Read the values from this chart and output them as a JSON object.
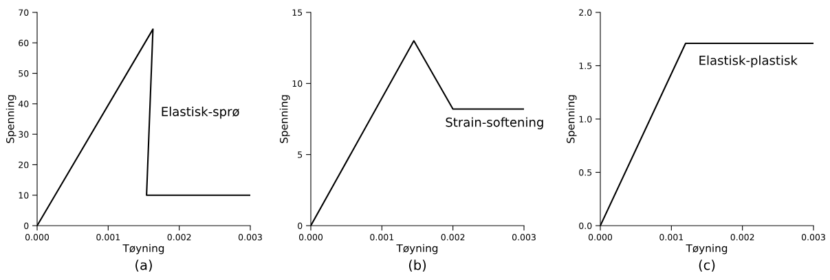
{
  "chart_data": [
    {
      "type": "line",
      "subtitle": "(a)",
      "xlabel": "Tøyning",
      "ylabel": "Spenning",
      "series": [
        {
          "color": "#000000",
          "x": [
            0,
            0.00163,
            0.00154,
            0.003
          ],
          "values": [
            0,
            64.5,
            10,
            10
          ]
        }
      ],
      "xlim": [
        0,
        0.003
      ],
      "xticks": [
        {
          "value": 0,
          "label": "0.000"
        },
        {
          "value": 0.001,
          "label": "0.001"
        },
        {
          "value": 0.002,
          "label": "0.002"
        },
        {
          "value": 0.003,
          "label": "0.003"
        }
      ],
      "ylim": [
        0,
        70
      ],
      "yticks": [
        0,
        10,
        20,
        30,
        40,
        50,
        60,
        70
      ],
      "annotations": [
        "Elastisk-sprø"
      ],
      "grid": false,
      "marker": "none",
      "line_style": "solid"
    },
    {
      "type": "line",
      "subtitle": "(b)",
      "xlabel": "Tøyning",
      "ylabel": "Spenning",
      "series": [
        {
          "color": "#000000",
          "x": [
            0,
            0.00145,
            0.002,
            0.003
          ],
          "values": [
            0,
            13.0,
            8.2,
            8.2
          ]
        }
      ],
      "xlim": [
        0,
        0.003
      ],
      "xticks": [
        {
          "value": 0,
          "label": "0.000"
        },
        {
          "value": 0.001,
          "label": "0.001"
        },
        {
          "value": 0.002,
          "label": "0.002"
        },
        {
          "value": 0.003,
          "label": "0.003"
        }
      ],
      "ylim": [
        0,
        15
      ],
      "yticks": [
        0,
        5,
        10,
        15
      ],
      "annotations": [
        "Strain-softening"
      ],
      "grid": false,
      "marker": "none",
      "line_style": "solid"
    },
    {
      "type": "line",
      "subtitle": "(c)",
      "xlabel": "Tøyning",
      "ylabel": "Spenning",
      "series": [
        {
          "color": "#000000",
          "x": [
            0,
            0.0012,
            0.003
          ],
          "values": [
            0,
            1.71,
            1.71
          ]
        }
      ],
      "xlim": [
        0,
        0.003
      ],
      "xticks": [
        {
          "value": 0,
          "label": "0.000"
        },
        {
          "value": 0.001,
          "label": "0.001"
        },
        {
          "value": 0.002,
          "label": "0.002"
        },
        {
          "value": 0.003,
          "label": "0.003"
        }
      ],
      "ylim": [
        0,
        2.0
      ],
      "yticks": [
        {
          "value": 0,
          "label": "0.0"
        },
        {
          "value": 0.5,
          "label": "0.5"
        },
        {
          "value": 1.0,
          "label": "1.0"
        },
        {
          "value": 1.5,
          "label": "1.5"
        },
        {
          "value": 2.0,
          "label": "2.0"
        }
      ],
      "annotations": [
        "Elastisk-plastisk"
      ],
      "grid": false,
      "marker": "none",
      "line_style": "solid"
    }
  ]
}
